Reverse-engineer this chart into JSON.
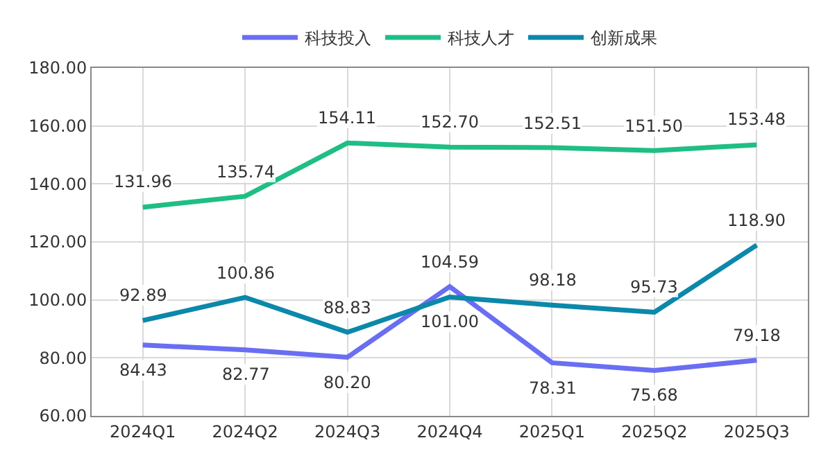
{
  "chart_data": {
    "type": "line",
    "categories": [
      "2024Q1",
      "2024Q2",
      "2024Q3",
      "2024Q4",
      "2025Q1",
      "2025Q2",
      "2025Q3"
    ],
    "series": [
      {
        "name": "科技投入",
        "color": "#6a6ef2",
        "values": [
          84.43,
          82.77,
          80.2,
          104.59,
          78.31,
          75.68,
          79.18
        ],
        "value_labels": [
          "84.43",
          "82.77",
          "80.20",
          "104.59",
          "78.31",
          "75.68",
          "79.18"
        ]
      },
      {
        "name": "科技人才",
        "color": "#1fbe84",
        "values": [
          131.96,
          135.74,
          154.11,
          152.7,
          152.51,
          151.5,
          153.48
        ],
        "value_labels": [
          "131.96",
          "135.74",
          "154.11",
          "152.70",
          "152.51",
          "151.50",
          "153.48"
        ]
      },
      {
        "name": "创新成果",
        "color": "#0b88aa",
        "values": [
          92.89,
          100.86,
          88.83,
          101.0,
          98.18,
          95.73,
          118.9
        ],
        "value_labels": [
          "92.89",
          "100.86",
          "88.83",
          "101.00",
          "98.18",
          "95.73",
          "118.90"
        ]
      }
    ],
    "ylim": [
      60,
      180
    ],
    "yticks": [
      {
        "value": 60,
        "label": "60.00"
      },
      {
        "value": 80,
        "label": "80.00"
      },
      {
        "value": 100,
        "label": "100.00"
      },
      {
        "value": 120,
        "label": "120.00"
      },
      {
        "value": 140,
        "label": "140.00"
      },
      {
        "value": 160,
        "label": "160.00"
      },
      {
        "value": 180,
        "label": "180.00"
      }
    ],
    "grid": true,
    "legend": "top",
    "marker": "none",
    "line_style": "solid"
  }
}
